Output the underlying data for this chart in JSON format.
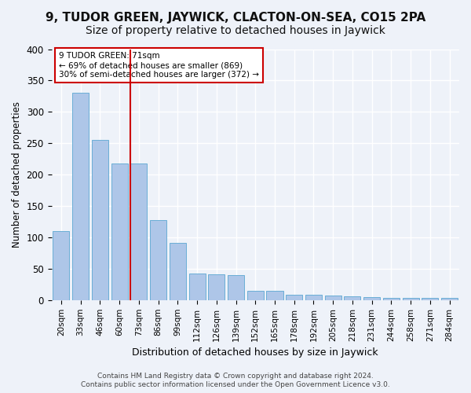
{
  "title": "9, TUDOR GREEN, JAYWICK, CLACTON-ON-SEA, CO15 2PA",
  "subtitle": "Size of property relative to detached houses in Jaywick",
  "xlabel": "Distribution of detached houses by size in Jaywick",
  "ylabel": "Number of detached properties",
  "bar_values": [
    110,
    330,
    255,
    218,
    218,
    128,
    91,
    42,
    41,
    40,
    15,
    15,
    9,
    8,
    7,
    6,
    5,
    3,
    3,
    3,
    4
  ],
  "categories": [
    "20sqm",
    "33sqm",
    "46sqm",
    "60sqm",
    "73sqm",
    "86sqm",
    "99sqm",
    "112sqm",
    "126sqm",
    "139sqm",
    "152sqm",
    "165sqm",
    "178sqm",
    "192sqm",
    "205sqm",
    "218sqm",
    "231sqm",
    "244sqm",
    "258sqm",
    "271sqm",
    "284sqm"
  ],
  "bar_color": "#aec6e8",
  "bar_edge_color": "#6aaed6",
  "vline_x_index": 4,
  "vline_color": "#cc0000",
  "annotation_text": "9 TUDOR GREEN: 71sqm\n← 69% of detached houses are smaller (869)\n30% of semi-detached houses are larger (372) →",
  "annotation_box_color": "#cc0000",
  "annotation_text_color": "#000000",
  "footer_line1": "Contains HM Land Registry data © Crown copyright and database right 2024.",
  "footer_line2": "Contains public sector information licensed under the Open Government Licence v3.0.",
  "ylim": [
    0,
    400
  ],
  "background_color": "#eef2f9",
  "grid_color": "#ffffff",
  "title_fontsize": 11,
  "subtitle_fontsize": 10
}
